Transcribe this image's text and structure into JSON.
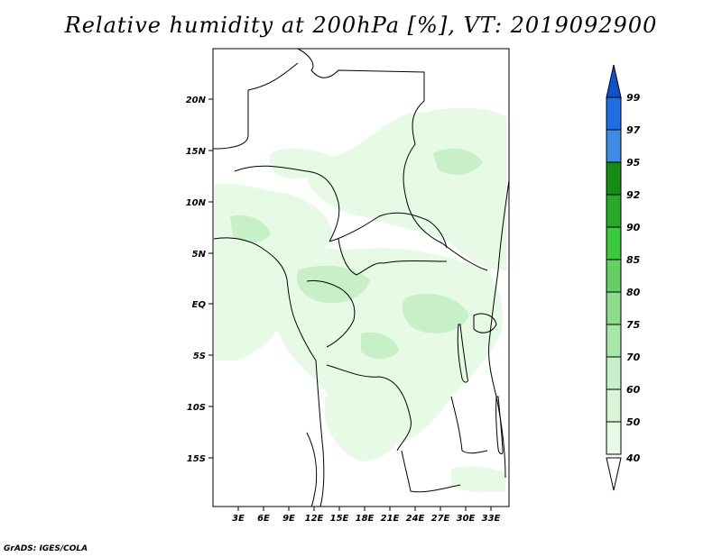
{
  "title": "Relative humidity at 200hPa [%], VT: 2019092900",
  "credit": "GrADS: IGES/COLA",
  "map": {
    "lat_ticks": [
      "20N",
      "15N",
      "10N",
      "5N",
      "EQ",
      "5S",
      "10S",
      "15S"
    ],
    "lon_ticks": [
      "3E",
      "6E",
      "9E",
      "12E",
      "15E",
      "18E",
      "21E",
      "24E",
      "27E",
      "30E",
      "33E"
    ]
  },
  "colorbar": {
    "levels": [
      "99",
      "97",
      "95",
      "92",
      "90",
      "85",
      "80",
      "75",
      "70",
      "60",
      "50",
      "40"
    ],
    "colors": [
      "#ffffff",
      "#e6fae6",
      "#c8f0c8",
      "#a8e6a8",
      "#8cdc8c",
      "#64d064",
      "#3cc83c",
      "#28a828",
      "#148c14",
      "#3c8ce6",
      "#1e6ee6",
      "#1450c8"
    ]
  },
  "palette": {
    "humid_light": "#e6fae6",
    "humid_mid": "#c8f0c8",
    "border": "#000000"
  }
}
